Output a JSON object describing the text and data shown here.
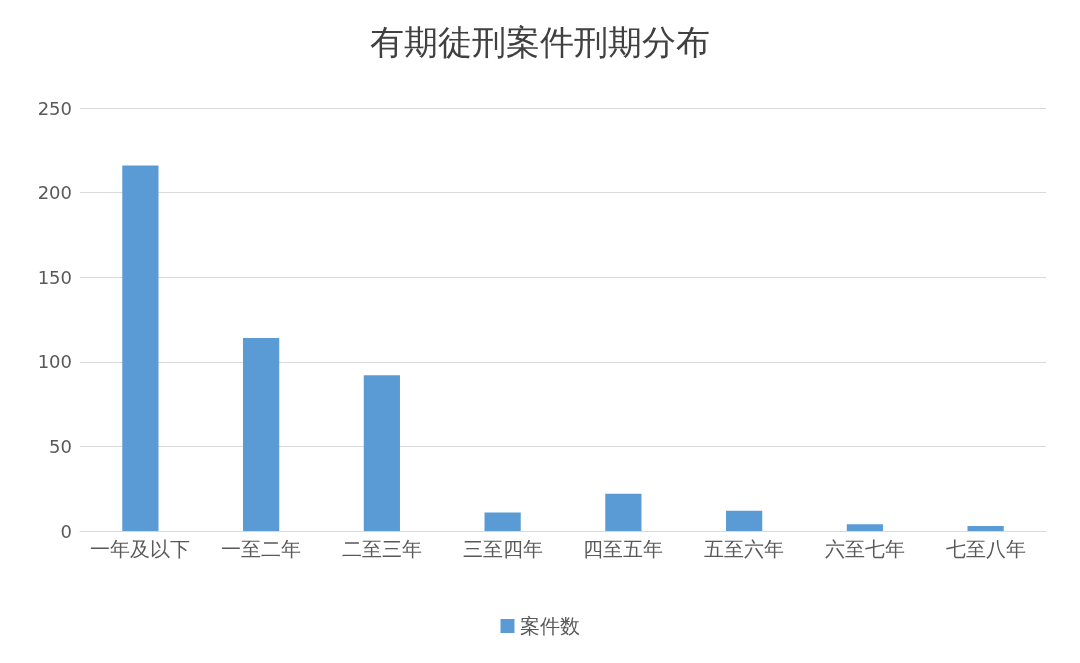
{
  "chart_data": {
    "type": "bar",
    "title": "有期徒刑案件刑期分布",
    "categories": [
      "一年及以下",
      "一至二年",
      "二至三年",
      "三至四年",
      "四至五年",
      "五至六年",
      "六至七年",
      "七至八年"
    ],
    "series": [
      {
        "name": "案件数",
        "color": "#5b9bd5",
        "values": [
          216,
          114,
          92,
          11,
          22,
          12,
          4,
          3
        ]
      }
    ],
    "ylim": [
      0,
      250
    ],
    "yticks": [
      0,
      50,
      100,
      150,
      200,
      250
    ],
    "grid": "y",
    "legend": "bottom"
  }
}
